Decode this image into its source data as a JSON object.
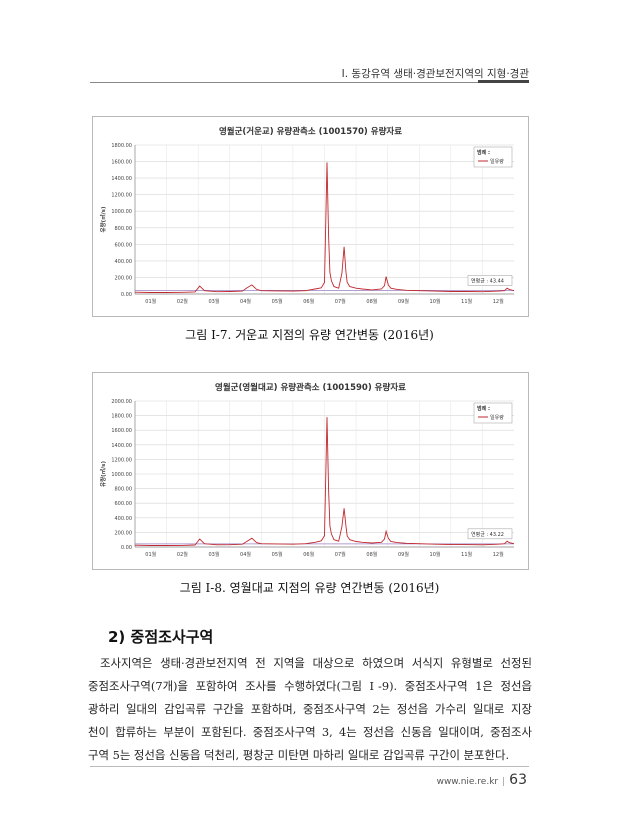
{
  "header": {
    "running_title": "I. 동강유역 생태·경관보전지역의 지형·경관"
  },
  "figures": [
    {
      "caption": "그림 Ⅰ-7. 거운교 지점의 유량 연간변동 (2016년)",
      "chart_data": {
        "type": "line",
        "title": "영월군(거운교) 유량관측소 (1001570) 유량자료",
        "ylabel": "유량(㎥/s)",
        "xlabel": "",
        "ylim": [
          0,
          1800
        ],
        "yticks": [
          "0.00",
          "200.00",
          "400.00",
          "600.00",
          "800.00",
          "1000.00",
          "1200.00",
          "1400.00",
          "1600.00",
          "1800.00"
        ],
        "categories": [
          "01월",
          "02월",
          "03월",
          "04월",
          "05월",
          "06월",
          "07월",
          "08월",
          "09월",
          "10월",
          "11월",
          "12월"
        ],
        "legend_title": "범례 :",
        "series": [
          {
            "name": "일유량",
            "color": "#c0282d",
            "x": [
              0,
              0.5,
              1,
              1.5,
              1.9,
              2.05,
              2.2,
              2.6,
              3,
              3.4,
              3.55,
              3.7,
              3.85,
              4,
              4.5,
              5,
              5.4,
              5.7,
              5.9,
              6,
              6.08,
              6.13,
              6.17,
              6.22,
              6.3,
              6.45,
              6.55,
              6.62,
              6.68,
              6.72,
              6.8,
              7,
              7.2,
              7.5,
              7.8,
              7.9,
              7.95,
              8.02,
              8.1,
              8.3,
              8.6,
              9,
              9.5,
              10,
              10.5,
              11,
              11.5,
              11.7,
              11.78,
              11.85,
              12
            ],
            "values": [
              22,
              18,
              18,
              20,
              25,
              95,
              40,
              28,
              30,
              35,
              75,
              110,
              55,
              40,
              38,
              35,
              40,
              60,
              75,
              140,
              1590,
              700,
              260,
              160,
              90,
              70,
              250,
              570,
              260,
              140,
              90,
              70,
              60,
              50,
              60,
              100,
              210,
              110,
              70,
              55,
              45,
              40,
              35,
              30,
              30,
              28,
              35,
              40,
              70,
              55,
              40
            ]
          }
        ],
        "mean_annotation": "연평균 : 43.44",
        "mean_value": 43.44
      }
    },
    {
      "caption": "그림 Ⅰ-8. 영월대교 지점의 유량 연간변동 (2016년)",
      "chart_data": {
        "type": "line",
        "title": "영월군(영월대교) 유량관측소 (1001590) 유량자료",
        "ylabel": "유량(㎥/s)",
        "xlabel": "",
        "ylim": [
          0,
          2000
        ],
        "yticks": [
          "0.00",
          "200.00",
          "400.00",
          "600.00",
          "800.00",
          "1000.00",
          "1200.00",
          "1400.00",
          "1600.00",
          "1800.00",
          "2000.00"
        ],
        "categories": [
          "01월",
          "02월",
          "03월",
          "04월",
          "05월",
          "06월",
          "07월",
          "08월",
          "09월",
          "10월",
          "11월",
          "12월"
        ],
        "legend_title": "범례 :",
        "series": [
          {
            "name": "일유량",
            "color": "#c0282d",
            "x": [
              0,
              0.5,
              1,
              1.5,
              1.9,
              2.05,
              2.2,
              2.6,
              3,
              3.4,
              3.55,
              3.7,
              3.85,
              4,
              4.5,
              5,
              5.4,
              5.7,
              5.9,
              6,
              6.08,
              6.13,
              6.17,
              6.22,
              6.3,
              6.45,
              6.55,
              6.62,
              6.68,
              6.72,
              6.8,
              7,
              7.2,
              7.5,
              7.8,
              7.9,
              7.95,
              8.02,
              8.1,
              8.3,
              8.6,
              9,
              9.5,
              10,
              10.5,
              11,
              11.5,
              11.7,
              11.78,
              11.85,
              12
            ],
            "values": [
              25,
              20,
              20,
              22,
              28,
              110,
              45,
              30,
              32,
              38,
              80,
              120,
              60,
              45,
              42,
              38,
              45,
              65,
              85,
              155,
              1780,
              780,
              290,
              180,
              100,
              80,
              280,
              530,
              280,
              150,
              100,
              75,
              65,
              55,
              65,
              110,
              215,
              120,
              75,
              60,
              50,
              45,
              38,
              33,
              33,
              30,
              38,
              45,
              80,
              60,
              45
            ]
          }
        ],
        "mean_annotation": "연평균 : 43.22",
        "mean_value": 43.22
      }
    }
  ],
  "section": {
    "heading": "2) 중점조사구역"
  },
  "body": {
    "lines": [
      "조사지역은 생태·경관보전지역 전 지역을 대상으로 하였으며 서식지 유형별로 선정된",
      "중점조사구역(7개)을 포함하여 조사를 수행하였다(그림 Ⅰ-9). 중점조사구역 1은 정선읍",
      "광하리 일대의 감입곡류 구간을 포함하며, 중점조사구역 2는 정선읍 가수리 일대로 지장",
      "천이 합류하는 부분이 포함된다. 중점조사구역 3, 4는 정선읍 신동읍 일대이며, 중점조사",
      "구역 5는 정선읍 신동읍 덕천리, 평창군 미탄면 마하리 일대로 감입곡류 구간이 분포한다."
    ]
  },
  "footer": {
    "url": "www.nie.re.kr",
    "page": "63"
  }
}
